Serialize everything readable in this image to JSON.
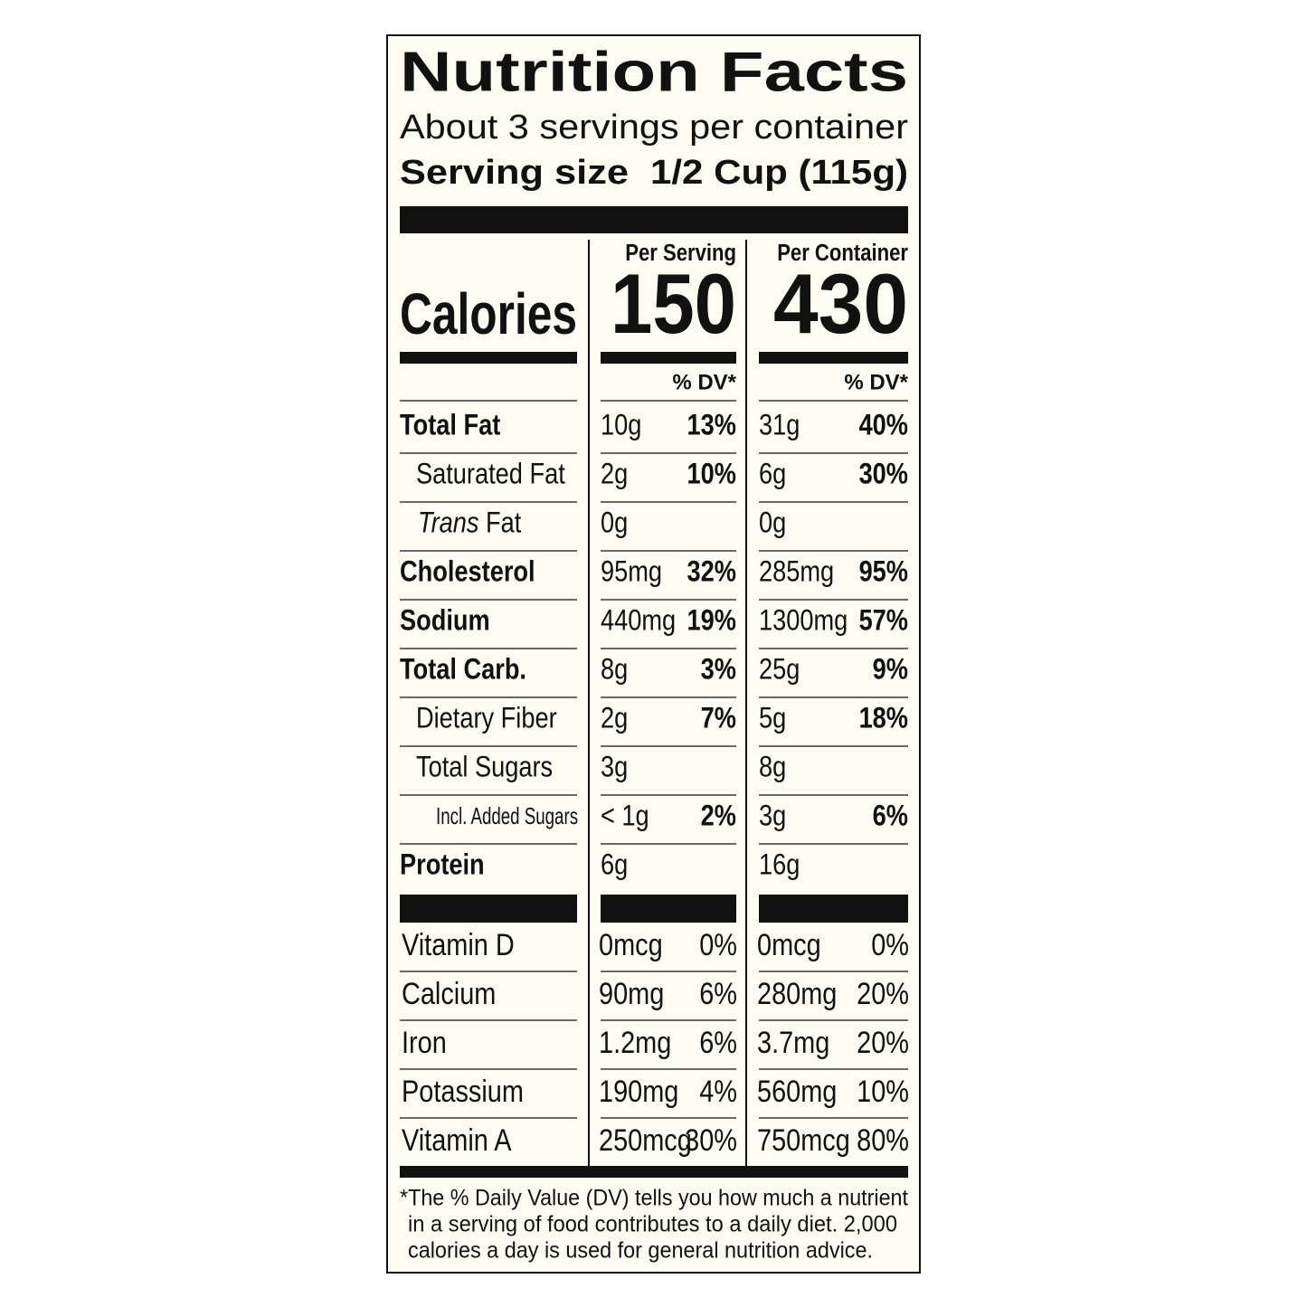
{
  "header": {
    "title": "Nutrition Facts",
    "servings": "About 3 servings per container",
    "serving_size_label": "Serving size",
    "serving_size_value": "1/2 Cup (115g)"
  },
  "columns": [
    "Per Serving",
    "Per Container"
  ],
  "calories": {
    "label": "Calories",
    "values": [
      150,
      430
    ]
  },
  "dv_header": [
    "% DV*",
    "% DV*"
  ],
  "nutrients": [
    {
      "label": "Total Fat",
      "bold": true,
      "per_serving": {
        "amount": "10g",
        "dv": "13%"
      },
      "per_container": {
        "amount": "31g",
        "dv": "40%"
      }
    },
    {
      "label": "Saturated Fat",
      "bold": false,
      "per_serving": {
        "amount": "2g",
        "dv": "10%"
      },
      "per_container": {
        "amount": "6g",
        "dv": "30%"
      }
    },
    {
      "label_italic": "Trans",
      "label": "Fat",
      "bold": false,
      "per_serving": {
        "amount": "0g"
      },
      "per_container": {
        "amount": "0g"
      }
    },
    {
      "label": "Cholesterol",
      "bold": true,
      "per_serving": {
        "amount": "95mg",
        "dv": "32%"
      },
      "per_container": {
        "amount": "285mg",
        "dv": "95%"
      }
    },
    {
      "label": "Sodium",
      "bold": true,
      "per_serving": {
        "amount": "440mg",
        "dv": "19%"
      },
      "per_container": {
        "amount": "1300mg",
        "dv": "57%"
      }
    },
    {
      "label": "Total Carb.",
      "bold": true,
      "per_serving": {
        "amount": "8g",
        "dv": "3%"
      },
      "per_container": {
        "amount": "25g",
        "dv": "9%"
      }
    },
    {
      "label": "Dietary Fiber",
      "bold": false,
      "per_serving": {
        "amount": "2g",
        "dv": "7%"
      },
      "per_container": {
        "amount": "5g",
        "dv": "18%"
      }
    },
    {
      "label": "Total Sugars",
      "bold": false,
      "per_serving": {
        "amount": "3g"
      },
      "per_container": {
        "amount": "8g"
      }
    },
    {
      "label": "Incl. Added Sugars",
      "bold": false,
      "per_serving": {
        "amount": "< 1g",
        "dv": "2%"
      },
      "per_container": {
        "amount": "3g",
        "dv": "6%"
      }
    },
    {
      "label": "Protein",
      "bold": true,
      "per_serving": {
        "amount": "6g"
      },
      "per_container": {
        "amount": "16g"
      }
    }
  ],
  "vitamins": [
    {
      "label": "Vitamin D",
      "per_serving": {
        "amount": "0mcg",
        "dv": "0%"
      },
      "per_container": {
        "amount": "0mcg",
        "dv": "0%"
      }
    },
    {
      "label": "Calcium",
      "per_serving": {
        "amount": "90mg",
        "dv": "6%"
      },
      "per_container": {
        "amount": "280mg",
        "dv": "20%"
      }
    },
    {
      "label": "Iron",
      "per_serving": {
        "amount": "1.2mg",
        "dv": "6%"
      },
      "per_container": {
        "amount": "3.7mg",
        "dv": "20%"
      }
    },
    {
      "label": "Potassium",
      "per_serving": {
        "amount": "190mg",
        "dv": "4%"
      },
      "per_container": {
        "amount": "560mg",
        "dv": "10%"
      }
    },
    {
      "label": "Vitamin A",
      "per_serving": {
        "amount": "250mcg",
        "dv": "30%"
      },
      "per_container": {
        "amount": "750mcg",
        "dv": "80%"
      }
    }
  ],
  "footnote": [
    "*The % Daily Value (DV) tells you how much a nutrient",
    "in a serving of food contributes to a daily diet. 2,000",
    "calories a day is used for general nutrition advice."
  ]
}
